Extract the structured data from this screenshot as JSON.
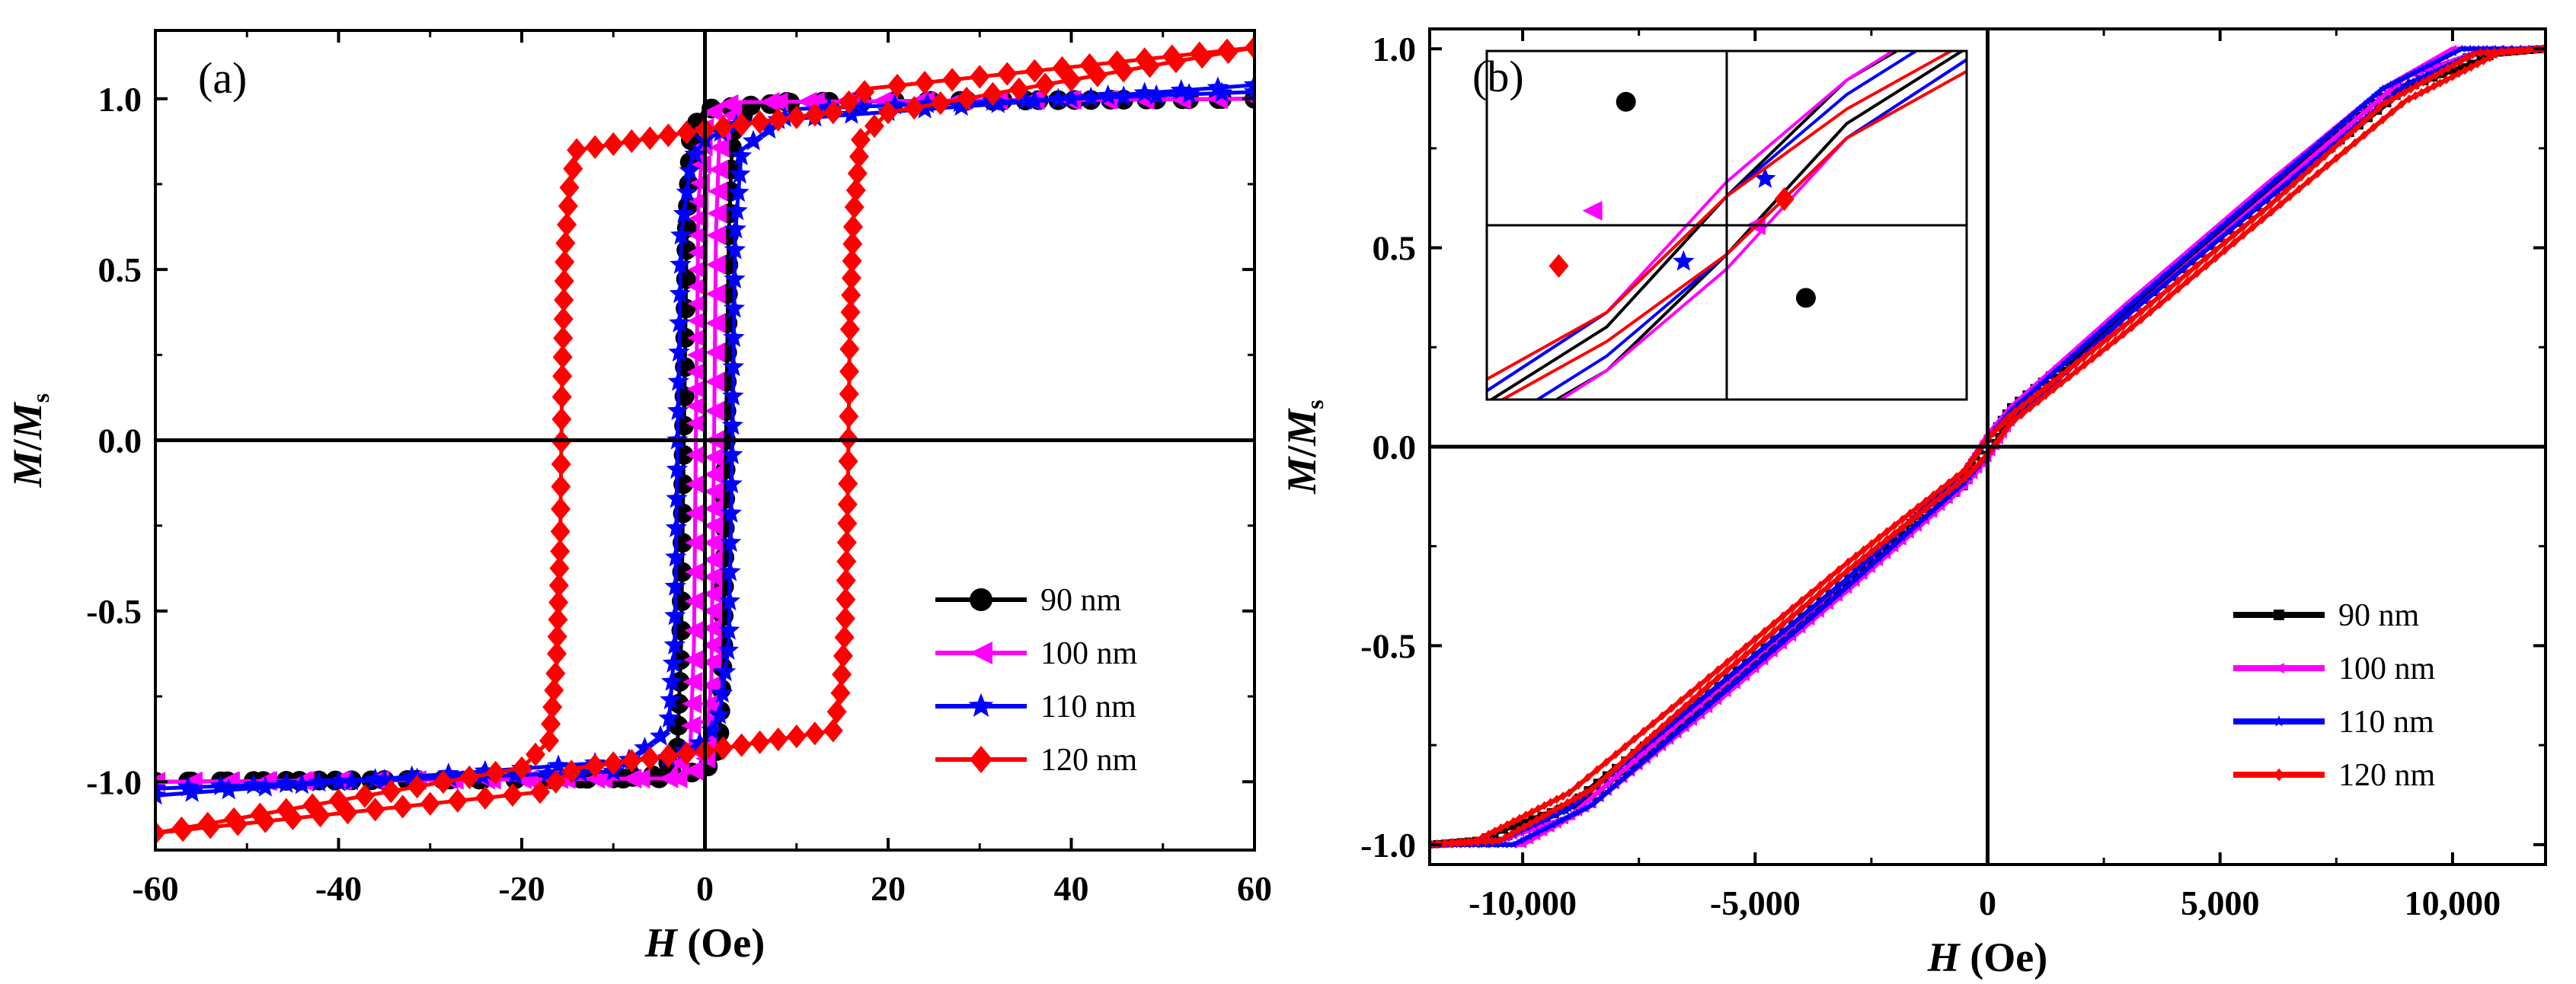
{
  "chart_data": [
    {
      "panel_label": "(a)",
      "type": "line",
      "xlabel": {
        "italic": "H",
        "rest": " (Oe)"
      },
      "ylabel": {
        "italic1": "M",
        "slash": "/",
        "italic2": "M",
        "sub": "s"
      },
      "xlim": [
        -60,
        60
      ],
      "ylim": [
        -1.2,
        1.2
      ],
      "xticks": [
        -60,
        -40,
        -20,
        0,
        20,
        40,
        60
      ],
      "xtick_labels": [
        "-60",
        "-40",
        "-20",
        "0",
        "20",
        "40",
        "60"
      ],
      "yticks": [
        -1.0,
        -0.5,
        0.0,
        0.5,
        1.0
      ],
      "ytick_labels": [
        "-1.0",
        "-0.5",
        "0.0",
        "0.5",
        "1.0"
      ],
      "legend_position": "bottom-right",
      "series": [
        {
          "name": "90 nm",
          "color": "#000000",
          "marker": "circle",
          "upper": [
            [
              -60,
              -1.0
            ],
            [
              -5,
              -0.99
            ],
            [
              -3,
              -0.9
            ],
            [
              -2.6,
              -0.6
            ],
            [
              -2.3,
              0.0
            ],
            [
              -2.0,
              0.6
            ],
            [
              -1.5,
              0.9
            ],
            [
              0,
              0.97
            ],
            [
              10,
              0.99
            ],
            [
              60,
              1.0
            ]
          ],
          "lower": [
            [
              -60,
              -1.0
            ],
            [
              -10,
              -0.99
            ],
            [
              0,
              -0.97
            ],
            [
              1.5,
              -0.9
            ],
            [
              2.0,
              -0.6
            ],
            [
              2.3,
              0.0
            ],
            [
              2.6,
              0.6
            ],
            [
              3,
              0.9
            ],
            [
              5,
              0.99
            ],
            [
              60,
              1.0
            ]
          ]
        },
        {
          "name": "100 nm",
          "color": "#ff00ff",
          "marker": "triangle-left",
          "upper": [
            [
              -60,
              -1.0
            ],
            [
              -4,
              -0.99
            ],
            [
              -1.6,
              -0.9
            ],
            [
              -1.2,
              -0.6
            ],
            [
              -1.0,
              0.0
            ],
            [
              -0.7,
              0.7
            ],
            [
              0,
              0.95
            ],
            [
              3,
              0.99
            ],
            [
              60,
              1.0
            ]
          ],
          "lower": [
            [
              -60,
              -1.0
            ],
            [
              -3,
              -0.99
            ],
            [
              0,
              -0.95
            ],
            [
              0.7,
              -0.7
            ],
            [
              1.0,
              0.0
            ],
            [
              1.2,
              0.6
            ],
            [
              1.6,
              0.9
            ],
            [
              4,
              0.99
            ],
            [
              60,
              1.0
            ]
          ]
        },
        {
          "name": "110 nm",
          "color": "#0000ff",
          "marker": "star",
          "upper": [
            [
              -60,
              -1.02
            ],
            [
              -10,
              -0.97
            ],
            [
              -4,
              -0.85
            ],
            [
              -3.3,
              -0.6
            ],
            [
              -3.0,
              0.0
            ],
            [
              -2.6,
              0.6
            ],
            [
              -1.5,
              0.82
            ],
            [
              0,
              0.88
            ],
            [
              4,
              0.93
            ],
            [
              60,
              1.04
            ]
          ],
          "lower": [
            [
              -60,
              -1.04
            ],
            [
              -4,
              -0.93
            ],
            [
              0,
              -0.88
            ],
            [
              1.5,
              -0.82
            ],
            [
              2.6,
              -0.6
            ],
            [
              3.0,
              0.0
            ],
            [
              3.3,
              0.6
            ],
            [
              4,
              0.85
            ],
            [
              10,
              0.97
            ],
            [
              60,
              1.02
            ]
          ]
        },
        {
          "name": "120 nm",
          "color": "#ff0000",
          "marker": "diamond",
          "upper": [
            [
              -60,
              -1.15
            ],
            [
              -20,
              -0.96
            ],
            [
              -17,
              -0.88
            ],
            [
              -16.2,
              -0.65
            ],
            [
              -15.8,
              -0.3
            ],
            [
              -15.6,
              0.16
            ],
            [
              -15.3,
              0.55
            ],
            [
              -14.8,
              0.74
            ],
            [
              -14,
              0.85
            ],
            [
              0,
              0.91
            ],
            [
              14,
              0.96
            ],
            [
              18,
              1.03
            ],
            [
              60,
              1.15
            ]
          ],
          "lower": [
            [
              -60,
              -1.15
            ],
            [
              -18,
              -1.03
            ],
            [
              -14,
              -0.96
            ],
            [
              0,
              -0.91
            ],
            [
              14,
              -0.85
            ],
            [
              14.8,
              -0.74
            ],
            [
              15.3,
              -0.55
            ],
            [
              15.6,
              -0.16
            ],
            [
              15.8,
              0.3
            ],
            [
              16.2,
              0.65
            ],
            [
              17,
              0.88
            ],
            [
              20,
              0.96
            ],
            [
              60,
              1.15
            ]
          ]
        }
      ]
    },
    {
      "panel_label": "(b)",
      "type": "line",
      "xlabel": {
        "italic": "H",
        "rest": " (Oe)"
      },
      "ylabel": {
        "italic1": "M",
        "slash": "/",
        "italic2": "M",
        "sub": "s"
      },
      "xlim": [
        -12000,
        12000
      ],
      "ylim": [
        -1.05,
        1.05
      ],
      "xticks": [
        -10000,
        -5000,
        0,
        5000,
        10000
      ],
      "xtick_labels": [
        "-10,000",
        "-5,000",
        "0",
        "5,000",
        "10,000"
      ],
      "yticks": [
        -1.0,
        -0.5,
        0.0,
        0.5,
        1.0
      ],
      "ytick_labels": [
        "-1.0",
        "-0.5",
        "0.0",
        "0.5",
        "1.0"
      ],
      "legend_position": "bottom-right",
      "series": [
        {
          "name": "90 nm",
          "color": "#000000",
          "marker": "small-square",
          "upper": [
            [
              -12000,
              -1.0
            ],
            [
              -11000,
              -0.99
            ],
            [
              -9000,
              -0.9
            ],
            [
              -6000,
              -0.62
            ],
            [
              -3000,
              -0.33
            ],
            [
              -500,
              -0.07
            ],
            [
              0,
              0.02
            ],
            [
              500,
              0.1
            ],
            [
              3000,
              0.34
            ],
            [
              6000,
              0.64
            ],
            [
              8500,
              0.88
            ],
            [
              10500,
              0.99
            ],
            [
              12000,
              1.0
            ]
          ],
          "lower": [
            [
              -12000,
              -1.0
            ],
            [
              -10500,
              -0.99
            ],
            [
              -8500,
              -0.88
            ],
            [
              -6000,
              -0.64
            ],
            [
              -3000,
              -0.34
            ],
            [
              -500,
              -0.1
            ],
            [
              0,
              -0.02
            ],
            [
              500,
              0.07
            ],
            [
              3000,
              0.33
            ],
            [
              6000,
              0.62
            ],
            [
              9000,
              0.9
            ],
            [
              11000,
              0.99
            ],
            [
              12000,
              1.0
            ]
          ]
        },
        {
          "name": "100 nm",
          "color": "#ff00ff",
          "marker": "small-triangle-left",
          "upper": [
            [
              -12000,
              -1.0
            ],
            [
              -10500,
              -0.99
            ],
            [
              -9000,
              -0.93
            ],
            [
              -6000,
              -0.63
            ],
            [
              -3000,
              -0.33
            ],
            [
              -500,
              -0.06
            ],
            [
              0,
              0.03
            ],
            [
              500,
              0.1
            ],
            [
              3000,
              0.36
            ],
            [
              6000,
              0.66
            ],
            [
              8500,
              0.9
            ],
            [
              10000,
              1.0
            ],
            [
              12000,
              1.0
            ]
          ],
          "lower": [
            [
              -12000,
              -1.0
            ],
            [
              -10000,
              -1.0
            ],
            [
              -8500,
              -0.9
            ],
            [
              -6000,
              -0.66
            ],
            [
              -3000,
              -0.36
            ],
            [
              -500,
              -0.1
            ],
            [
              0,
              -0.03
            ],
            [
              500,
              0.06
            ],
            [
              3000,
              0.33
            ],
            [
              6000,
              0.63
            ],
            [
              9000,
              0.93
            ],
            [
              10500,
              0.99
            ],
            [
              12000,
              1.0
            ]
          ]
        },
        {
          "name": "110 nm",
          "color": "#0000ff",
          "marker": "small-star",
          "upper": [
            [
              -12000,
              -1.0
            ],
            [
              -10500,
              -0.99
            ],
            [
              -9000,
              -0.91
            ],
            [
              -6000,
              -0.62
            ],
            [
              -3000,
              -0.33
            ],
            [
              -500,
              -0.06
            ],
            [
              0,
              0.02
            ],
            [
              500,
              0.09
            ],
            [
              3000,
              0.35
            ],
            [
              6000,
              0.65
            ],
            [
              8500,
              0.9
            ],
            [
              10200,
              1.0
            ],
            [
              12000,
              1.0
            ]
          ],
          "lower": [
            [
              -12000,
              -1.0
            ],
            [
              -10200,
              -1.0
            ],
            [
              -8500,
              -0.9
            ],
            [
              -6000,
              -0.65
            ],
            [
              -3000,
              -0.35
            ],
            [
              -500,
              -0.09
            ],
            [
              0,
              -0.02
            ],
            [
              500,
              0.06
            ],
            [
              3000,
              0.33
            ],
            [
              6000,
              0.62
            ],
            [
              9000,
              0.91
            ],
            [
              10500,
              0.99
            ],
            [
              12000,
              1.0
            ]
          ]
        },
        {
          "name": "120 nm",
          "color": "#ff0000",
          "marker": "small-diamond",
          "upper": [
            [
              -12000,
              -1.0
            ],
            [
              -11000,
              -0.99
            ],
            [
              -9000,
              -0.87
            ],
            [
              -6000,
              -0.58
            ],
            [
              -3000,
              -0.29
            ],
            [
              -500,
              -0.06
            ],
            [
              0,
              0.02
            ],
            [
              500,
              0.08
            ],
            [
              3000,
              0.31
            ],
            [
              6000,
              0.6
            ],
            [
              8500,
              0.86
            ],
            [
              10500,
              0.99
            ],
            [
              12000,
              1.0
            ]
          ],
          "lower": [
            [
              -12000,
              -1.0
            ],
            [
              -10500,
              -0.99
            ],
            [
              -8500,
              -0.86
            ],
            [
              -6000,
              -0.6
            ],
            [
              -3000,
              -0.31
            ],
            [
              -500,
              -0.08
            ],
            [
              0,
              -0.02
            ],
            [
              500,
              0.06
            ],
            [
              3000,
              0.29
            ],
            [
              6000,
              0.58
            ],
            [
              9000,
              0.87
            ],
            [
              11000,
              0.99
            ],
            [
              12000,
              1.0
            ]
          ]
        }
      ]
    }
  ]
}
